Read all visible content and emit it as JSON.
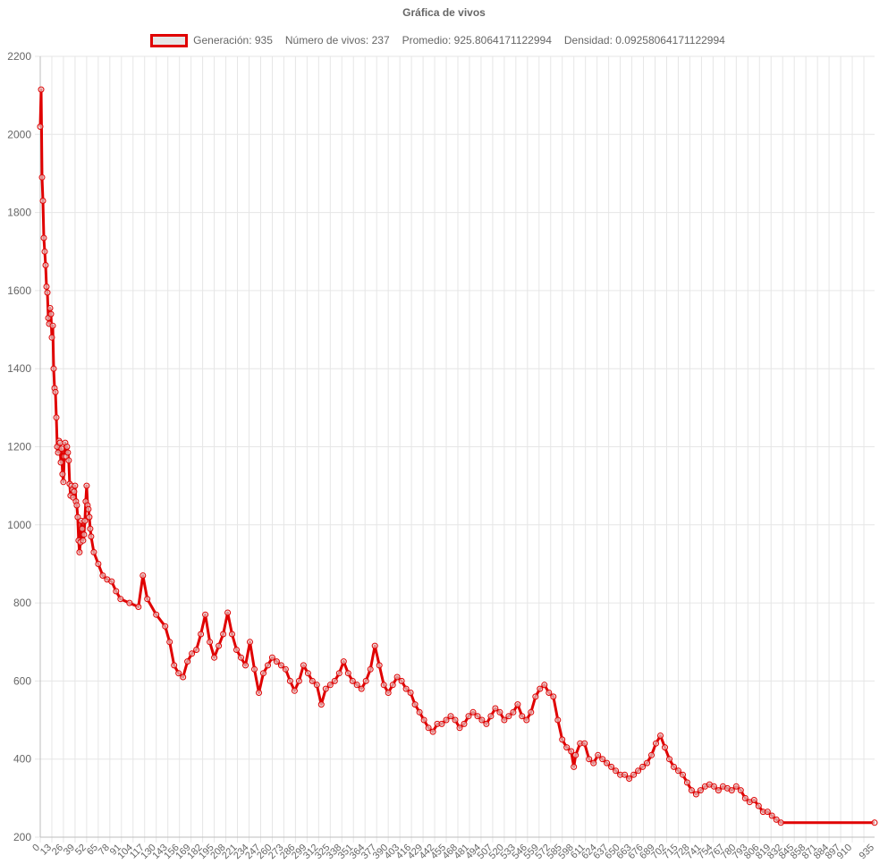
{
  "chart_data": {
    "type": "line",
    "title": "Gráfica de vivos",
    "legend": {
      "items": [
        "Generación: 935",
        "Número de vivos: 237",
        "Promedio: 925.8064171122994",
        "Densidad: 0.09258064171122994"
      ],
      "placement": "top"
    },
    "series": [
      {
        "name": "Generación: 935",
        "color": "#e00000",
        "point_fill": "rgba(230,230,230,0.6)",
        "points": [
          [
            0,
            2020
          ],
          [
            1,
            2115
          ],
          [
            2,
            1890
          ],
          [
            3,
            1830
          ],
          [
            4,
            1735
          ],
          [
            5,
            1700
          ],
          [
            6,
            1665
          ],
          [
            7,
            1610
          ],
          [
            8,
            1595
          ],
          [
            9,
            1530
          ],
          [
            10,
            1515
          ],
          [
            11,
            1555
          ],
          [
            12,
            1540
          ],
          [
            13,
            1480
          ],
          [
            14,
            1510
          ],
          [
            15,
            1400
          ],
          [
            16,
            1350
          ],
          [
            17,
            1340
          ],
          [
            18,
            1275
          ],
          [
            19,
            1200
          ],
          [
            20,
            1185
          ],
          [
            21,
            1215
          ],
          [
            22,
            1210
          ],
          [
            23,
            1160
          ],
          [
            24,
            1195
          ],
          [
            25,
            1130
          ],
          [
            26,
            1110
          ],
          [
            27,
            1175
          ],
          [
            28,
            1210
          ],
          [
            29,
            1175
          ],
          [
            30,
            1200
          ],
          [
            31,
            1185
          ],
          [
            32,
            1165
          ],
          [
            33,
            1105
          ],
          [
            34,
            1075
          ],
          [
            35,
            1100
          ],
          [
            36,
            1090
          ],
          [
            37,
            1070
          ],
          [
            38,
            1085
          ],
          [
            39,
            1100
          ],
          [
            40,
            1060
          ],
          [
            41,
            1050
          ],
          [
            42,
            1020
          ],
          [
            43,
            960
          ],
          [
            44,
            930
          ],
          [
            45,
            955
          ],
          [
            46,
            1010
          ],
          [
            47,
            990
          ],
          [
            48,
            960
          ],
          [
            49,
            975
          ],
          [
            50,
            1010
          ],
          [
            51,
            1060
          ],
          [
            52,
            1100
          ],
          [
            53,
            1050
          ],
          [
            54,
            1040
          ],
          [
            55,
            1020
          ],
          [
            56,
            990
          ],
          [
            57,
            970
          ],
          [
            60,
            930
          ],
          [
            65,
            900
          ],
          [
            70,
            870
          ],
          [
            75,
            860
          ],
          [
            80,
            855
          ],
          [
            85,
            830
          ],
          [
            90,
            810
          ],
          [
            100,
            800
          ],
          [
            110,
            790
          ],
          [
            115,
            870
          ],
          [
            120,
            810
          ],
          [
            130,
            770
          ],
          [
            140,
            740
          ],
          [
            145,
            700
          ],
          [
            150,
            640
          ],
          [
            155,
            620
          ],
          [
            160,
            610
          ],
          [
            165,
            650
          ],
          [
            170,
            670
          ],
          [
            175,
            680
          ],
          [
            180,
            720
          ],
          [
            185,
            770
          ],
          [
            190,
            700
          ],
          [
            195,
            660
          ],
          [
            200,
            690
          ],
          [
            205,
            720
          ],
          [
            210,
            775
          ],
          [
            215,
            720
          ],
          [
            220,
            680
          ],
          [
            225,
            660
          ],
          [
            230,
            640
          ],
          [
            235,
            700
          ],
          [
            240,
            630
          ],
          [
            245,
            570
          ],
          [
            250,
            620
          ],
          [
            255,
            640
          ],
          [
            260,
            660
          ],
          [
            265,
            650
          ],
          [
            270,
            640
          ],
          [
            275,
            630
          ],
          [
            280,
            600
          ],
          [
            285,
            575
          ],
          [
            290,
            600
          ],
          [
            295,
            640
          ],
          [
            300,
            620
          ],
          [
            305,
            600
          ],
          [
            310,
            590
          ],
          [
            315,
            540
          ],
          [
            320,
            580
          ],
          [
            325,
            590
          ],
          [
            330,
            600
          ],
          [
            335,
            620
          ],
          [
            340,
            650
          ],
          [
            345,
            620
          ],
          [
            350,
            600
          ],
          [
            355,
            590
          ],
          [
            360,
            580
          ],
          [
            365,
            600
          ],
          [
            370,
            630
          ],
          [
            375,
            690
          ],
          [
            380,
            640
          ],
          [
            385,
            590
          ],
          [
            390,
            570
          ],
          [
            395,
            590
          ],
          [
            400,
            610
          ],
          [
            405,
            600
          ],
          [
            410,
            580
          ],
          [
            415,
            570
          ],
          [
            420,
            540
          ],
          [
            425,
            520
          ],
          [
            430,
            500
          ],
          [
            435,
            480
          ],
          [
            440,
            470
          ],
          [
            445,
            490
          ],
          [
            450,
            490
          ],
          [
            455,
            500
          ],
          [
            460,
            510
          ],
          [
            465,
            500
          ],
          [
            470,
            480
          ],
          [
            475,
            490
          ],
          [
            480,
            510
          ],
          [
            485,
            520
          ],
          [
            490,
            510
          ],
          [
            495,
            500
          ],
          [
            500,
            490
          ],
          [
            505,
            510
          ],
          [
            510,
            530
          ],
          [
            515,
            520
          ],
          [
            520,
            500
          ],
          [
            525,
            510
          ],
          [
            530,
            520
          ],
          [
            535,
            540
          ],
          [
            540,
            510
          ],
          [
            545,
            500
          ],
          [
            550,
            520
          ],
          [
            555,
            560
          ],
          [
            560,
            580
          ],
          [
            565,
            590
          ],
          [
            570,
            570
          ],
          [
            575,
            560
          ],
          [
            580,
            500
          ],
          [
            585,
            450
          ],
          [
            590,
            430
          ],
          [
            595,
            420
          ],
          [
            598,
            380
          ],
          [
            600,
            410
          ],
          [
            605,
            440
          ],
          [
            610,
            440
          ],
          [
            615,
            400
          ],
          [
            620,
            390
          ],
          [
            625,
            410
          ],
          [
            630,
            400
          ],
          [
            635,
            390
          ],
          [
            640,
            380
          ],
          [
            645,
            370
          ],
          [
            650,
            360
          ],
          [
            655,
            360
          ],
          [
            660,
            350
          ],
          [
            665,
            360
          ],
          [
            670,
            370
          ],
          [
            675,
            380
          ],
          [
            680,
            390
          ],
          [
            685,
            410
          ],
          [
            690,
            440
          ],
          [
            695,
            460
          ],
          [
            700,
            430
          ],
          [
            705,
            400
          ],
          [
            710,
            380
          ],
          [
            715,
            370
          ],
          [
            720,
            360
          ],
          [
            725,
            340
          ],
          [
            730,
            320
          ],
          [
            735,
            310
          ],
          [
            740,
            320
          ],
          [
            745,
            330
          ],
          [
            750,
            335
          ],
          [
            755,
            330
          ],
          [
            760,
            320
          ],
          [
            765,
            330
          ],
          [
            770,
            325
          ],
          [
            775,
            320
          ],
          [
            780,
            330
          ],
          [
            785,
            320
          ],
          [
            790,
            300
          ],
          [
            795,
            290
          ],
          [
            800,
            295
          ],
          [
            805,
            280
          ],
          [
            810,
            265
          ],
          [
            815,
            265
          ],
          [
            820,
            255
          ],
          [
            825,
            245
          ],
          [
            830,
            237
          ],
          [
            935,
            237
          ]
        ]
      }
    ],
    "x_tick_labels": [
      "0",
      "13",
      "26",
      "39",
      "52",
      "65",
      "78",
      "91",
      "104",
      "117",
      "130",
      "143",
      "156",
      "169",
      "182",
      "195",
      "208",
      "221",
      "234",
      "247",
      "260",
      "273",
      "286",
      "299",
      "312",
      "325",
      "338",
      "351",
      "364",
      "377",
      "390",
      "403",
      "416",
      "429",
      "442",
      "455",
      "468",
      "481",
      "494",
      "507",
      "520",
      "533",
      "546",
      "559",
      "572",
      "585",
      "598",
      "611",
      "624",
      "637",
      "650",
      "663",
      "676",
      "689",
      "702",
      "715",
      "728",
      "741",
      "754",
      "767",
      "780",
      "793",
      "806",
      "819",
      "832",
      "845",
      "858",
      "871",
      "884",
      "897",
      "910",
      "935"
    ],
    "x_tick_step": 13,
    "y_tick_labels": [
      "200",
      "400",
      "600",
      "800",
      "1000",
      "1200",
      "1400",
      "1600",
      "1800",
      "2000",
      "2200"
    ],
    "ylim": [
      200,
      2200
    ],
    "xlim": [
      0,
      935
    ],
    "grid": true,
    "xlabel": "",
    "ylabel": ""
  }
}
